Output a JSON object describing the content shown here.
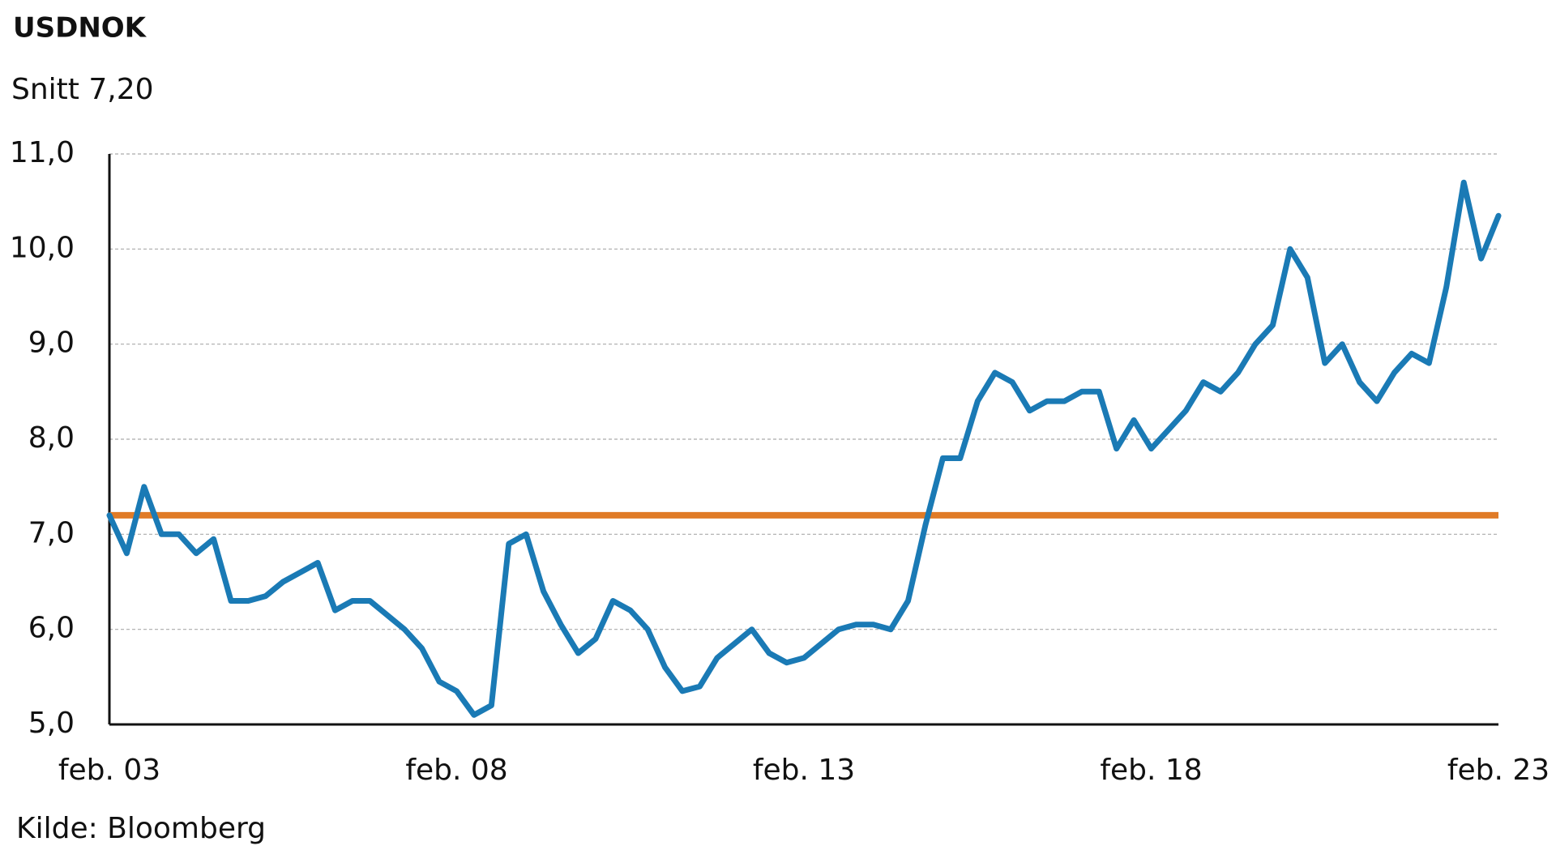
{
  "chart_data": {
    "type": "line",
    "title": "USDNOK",
    "subtitle": "Snitt 7,20",
    "source": "Kilde: Bloomberg",
    "categories": [
      "feb. 03",
      null,
      null,
      null,
      null,
      null,
      null,
      null,
      null,
      null,
      null,
      null,
      null,
      null,
      null,
      null,
      null,
      null,
      null,
      null,
      "feb. 08",
      null,
      null,
      null,
      null,
      null,
      null,
      null,
      null,
      null,
      null,
      null,
      null,
      null,
      null,
      null,
      null,
      null,
      null,
      null,
      "feb. 13",
      null,
      null,
      null,
      null,
      null,
      null,
      null,
      null,
      null,
      null,
      null,
      null,
      null,
      null,
      null,
      null,
      null,
      null,
      null,
      "feb. 18",
      null,
      null,
      null,
      null,
      null,
      null,
      null,
      null,
      null,
      null,
      null,
      null,
      null,
      null,
      null,
      null,
      null,
      null,
      null,
      "feb. 23"
    ],
    "series": [
      {
        "name": "USDNOK",
        "color": "#1a7ab5",
        "values": [
          7.2,
          6.8,
          7.5,
          7.0,
          7.0,
          6.8,
          6.95,
          6.3,
          6.3,
          6.35,
          6.5,
          6.6,
          6.7,
          6.2,
          6.3,
          6.3,
          6.15,
          6.0,
          5.8,
          5.45,
          5.35,
          5.1,
          5.2,
          6.9,
          7.0,
          6.4,
          6.05,
          5.75,
          5.9,
          6.3,
          6.2,
          6.0,
          5.6,
          5.35,
          5.4,
          5.7,
          5.85,
          6.0,
          5.75,
          5.65,
          5.7,
          5.85,
          6.0,
          6.05,
          6.05,
          6.0,
          6.3,
          7.1,
          7.8,
          7.8,
          8.4,
          8.7,
          8.6,
          8.3,
          8.4,
          8.4,
          8.5,
          8.5,
          7.9,
          8.2,
          7.9,
          8.1,
          8.3,
          8.6,
          8.5,
          8.7,
          9.0,
          9.2,
          10.0,
          9.7,
          8.8,
          9.0,
          8.6,
          8.4,
          8.7,
          8.9,
          8.8,
          9.6,
          10.7,
          9.9,
          10.35
        ]
      }
    ],
    "reference_line": {
      "value": 7.2,
      "color": "#e07b27"
    },
    "ylim": [
      5,
      11
    ],
    "yticks": [
      {
        "value": 5,
        "label": "5,0"
      },
      {
        "value": 6,
        "label": "6,0"
      },
      {
        "value": 7,
        "label": "7,0"
      },
      {
        "value": 8,
        "label": "8,0"
      },
      {
        "value": 9,
        "label": "9,0"
      },
      {
        "value": 10,
        "label": "10,0"
      },
      {
        "value": 11,
        "label": "11,0"
      }
    ],
    "grid": true
  }
}
